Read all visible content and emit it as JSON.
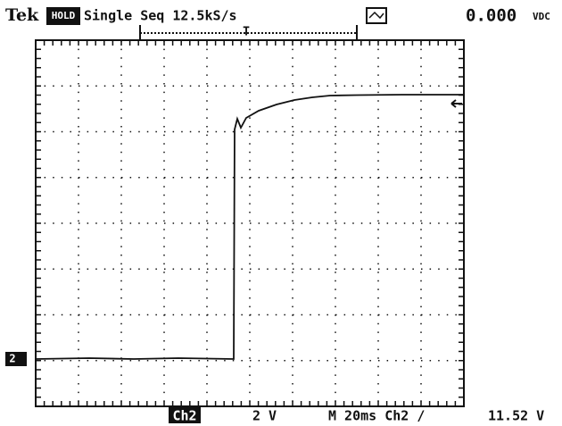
{
  "header": {
    "brand": "Tek",
    "mode": "HOLD",
    "acquisition": "Single Seq 12.5kS/s",
    "readout_value": "0.000",
    "readout_unit": "VDC"
  },
  "trigger_marker": "T",
  "channel_marker": "2",
  "footer": {
    "channel": "Ch2",
    "scale": "2 V",
    "timebase": "M 20ms Ch2 /",
    "trigger_level": "11.52 V"
  }
}
